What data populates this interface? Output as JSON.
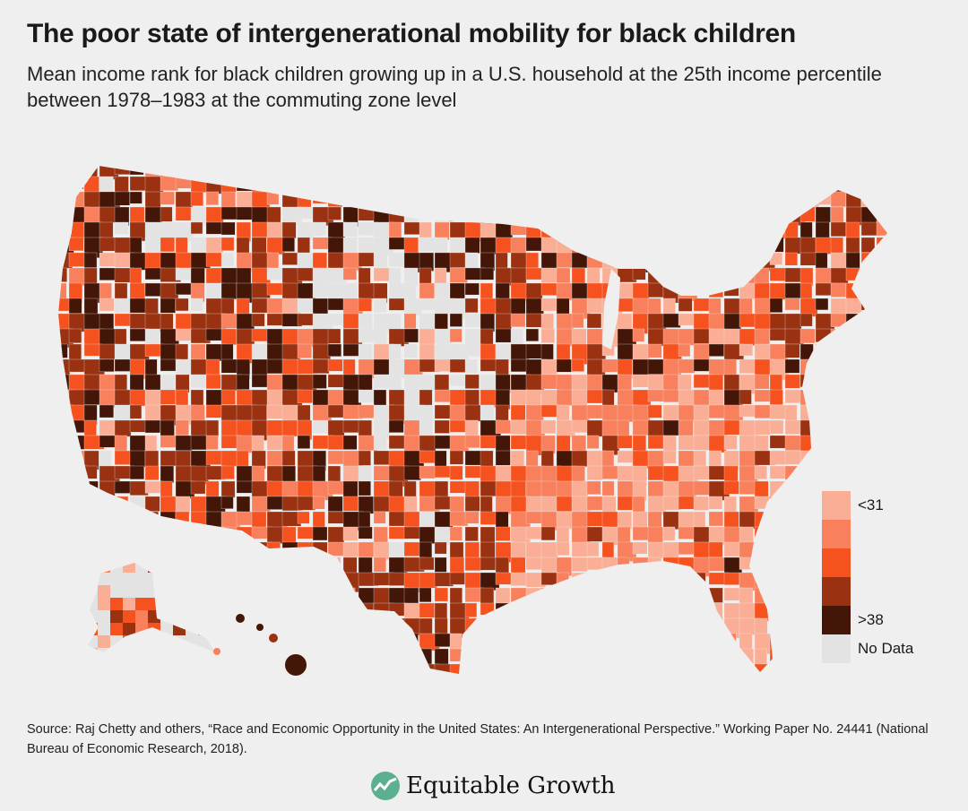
{
  "title": "The poor state of intergenerational mobility for black children",
  "subtitle": "Mean income rank for black children growing up in a U.S. household at the 25th income percentile between 1978–1983 at the commuting zone level",
  "legend": {
    "items": [
      {
        "label": "<31",
        "color": "#fbae96"
      },
      {
        "label": "",
        "color": "#f8805c"
      },
      {
        "label": "",
        "color": "#f5521f"
      },
      {
        "label": "",
        "color": "#9a3212"
      },
      {
        "label": ">38",
        "color": "#431608"
      },
      {
        "label": "No Data",
        "color": "#e3e3e3"
      }
    ]
  },
  "source": "Source: Raj Chetty and others, “Race and Economic Opportunity in the United States: An Intergenerational Perspective.” Working Paper No. 24441 (National Bureau of Economic Research, 2018).",
  "logo": {
    "text": "Equitable Growth",
    "color": "#5bb08f"
  }
}
